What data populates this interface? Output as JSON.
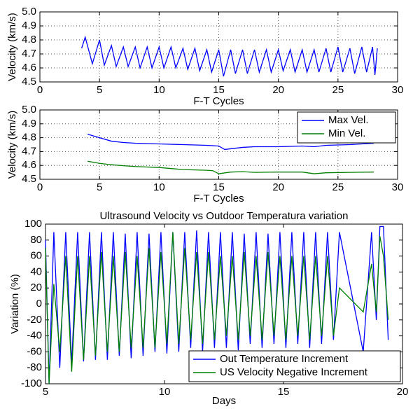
{
  "chart_data": [
    {
      "type": "line",
      "xlabel": "F-T Cycles",
      "ylabel": "Velocity (km/s)",
      "grid": true,
      "xlim": [
        0,
        30
      ],
      "xticks": [
        0,
        5,
        10,
        15,
        20,
        25,
        30
      ],
      "ylim": [
        4.5,
        5
      ],
      "yticks": [
        4.5,
        4.6,
        4.7,
        4.8,
        4.9,
        {
          "value": 5,
          "label": "5.0"
        }
      ],
      "series": [
        {
          "color": "#0000ff",
          "x": [
            3.5,
            3.8,
            4.4,
            5.0,
            5.4,
            6.0,
            6.4,
            7.0,
            7.4,
            8.0,
            8.4,
            9.0,
            9.4,
            10.0,
            10.4,
            11.0,
            11.4,
            12.0,
            12.4,
            13.0,
            13.4,
            14.0,
            14.4,
            15.0,
            15.4,
            16.0,
            16.4,
            17.0,
            17.4,
            18.0,
            18.4,
            19.0,
            19.4,
            20.0,
            20.4,
            21.0,
            21.4,
            22.0,
            22.4,
            23.0,
            23.4,
            24.0,
            24.4,
            25.0,
            25.4,
            26.0,
            26.4,
            27.0,
            27.4,
            27.9,
            28.1,
            28.3
          ],
          "values": [
            4.74,
            4.82,
            4.63,
            4.8,
            4.62,
            4.76,
            4.61,
            4.75,
            4.61,
            4.75,
            4.6,
            4.75,
            4.6,
            4.75,
            4.6,
            4.75,
            4.6,
            4.74,
            4.59,
            4.74,
            4.58,
            4.73,
            4.57,
            4.73,
            4.54,
            4.73,
            4.56,
            4.73,
            4.56,
            4.73,
            4.57,
            4.73,
            4.57,
            4.73,
            4.58,
            4.73,
            4.57,
            4.73,
            4.57,
            4.73,
            4.57,
            4.74,
            4.57,
            4.75,
            4.57,
            4.74,
            4.56,
            4.75,
            4.57,
            4.75,
            4.55,
            4.74
          ]
        }
      ]
    },
    {
      "type": "line",
      "xlabel": "F-T Cycles",
      "ylabel": "Velocity (km/s)",
      "grid": true,
      "legend": "upper right",
      "xlim": [
        0,
        30
      ],
      "xticks": [
        0,
        5,
        10,
        15,
        20,
        25,
        30
      ],
      "ylim": [
        4.5,
        5
      ],
      "yticks": [
        4.5,
        4.6,
        4.7,
        4.8,
        4.9,
        {
          "value": 5,
          "label": "5.0"
        }
      ],
      "series": [
        {
          "name": "Max Vel.",
          "color": "#0000ff",
          "x": [
            4,
            5,
            6,
            7,
            8,
            10,
            12,
            14,
            15,
            15.5,
            16,
            17,
            18,
            20,
            22,
            23,
            24,
            26,
            28
          ],
          "values": [
            4.825,
            4.8,
            4.775,
            4.765,
            4.76,
            4.755,
            4.75,
            4.745,
            4.74,
            4.715,
            4.72,
            4.73,
            4.735,
            4.735,
            4.74,
            4.735,
            4.745,
            4.75,
            4.76
          ]
        },
        {
          "name": "Min Vel.",
          "color": "#008000",
          "x": [
            4,
            5,
            6,
            7,
            8,
            10,
            12,
            14,
            14.5,
            15,
            16,
            17,
            18,
            20,
            22,
            23,
            24,
            26,
            28
          ],
          "values": [
            4.63,
            4.615,
            4.605,
            4.598,
            4.592,
            4.585,
            4.57,
            4.565,
            4.562,
            4.54,
            4.552,
            4.555,
            4.55,
            4.552,
            4.552,
            4.54,
            4.547,
            4.55,
            4.552
          ]
        }
      ]
    },
    {
      "type": "line",
      "title": "Ultrasound Velocity vs Outdoor Temperatura variation",
      "xlabel": "Days",
      "ylabel": "Variation (%)",
      "grid": false,
      "legend": "lower right",
      "xlim": [
        5,
        20
      ],
      "xticks": [
        5,
        10,
        15,
        20
      ],
      "ylim": [
        -100,
        100
      ],
      "yticks": [
        -100,
        -80,
        -60,
        -40,
        -20,
        0,
        20,
        40,
        60,
        80,
        100
      ],
      "series": [
        {
          "name": "Out Temperature Increment",
          "color": "#0000ff",
          "x": [
            5.0,
            5.15,
            5.35,
            5.6,
            5.85,
            6.1,
            6.35,
            6.6,
            6.85,
            7.1,
            7.35,
            7.6,
            7.85,
            8.1,
            8.35,
            8.6,
            8.85,
            9.1,
            9.35,
            9.6,
            9.85,
            10.1,
            10.35,
            10.6,
            10.85,
            11.1,
            11.35,
            11.6,
            11.85,
            12.1,
            12.35,
            12.6,
            12.85,
            13.1,
            13.35,
            13.6,
            13.85,
            14.1,
            14.35,
            14.6,
            14.85,
            15.1,
            15.35,
            15.6,
            15.85,
            16.1,
            16.35,
            16.6,
            16.85,
            17.1,
            17.35,
            18.35,
            18.7,
            18.9,
            19.05,
            19.2,
            19.4
          ],
          "values": [
            80,
            -100,
            90,
            -80,
            90,
            -75,
            90,
            -72,
            90,
            -70,
            90,
            -70,
            90,
            -65,
            88,
            -68,
            90,
            -65,
            88,
            -60,
            90,
            -62,
            90,
            -60,
            90,
            -55,
            92,
            -60,
            90,
            -55,
            90,
            -55,
            90,
            -58,
            88,
            -50,
            90,
            -55,
            88,
            -50,
            90,
            -55,
            90,
            -50,
            90,
            -55,
            90,
            -50,
            90,
            -45,
            90,
            -60,
            90,
            -20,
            97,
            97,
            -45
          ]
        },
        {
          "name": "US Velocity Negative Increment",
          "color": "#008000",
          "x": [
            5.0,
            5.15,
            5.35,
            5.6,
            5.85,
            6.1,
            6.35,
            6.6,
            6.85,
            7.1,
            7.35,
            7.6,
            7.85,
            8.1,
            8.35,
            8.6,
            8.85,
            9.1,
            9.35,
            9.6,
            9.85,
            10.1,
            10.35,
            10.6,
            10.85,
            11.1,
            11.35,
            11.6,
            11.85,
            12.1,
            12.35,
            12.6,
            12.85,
            13.1,
            13.35,
            13.6,
            13.85,
            14.1,
            14.35,
            14.6,
            14.85,
            15.1,
            15.35,
            15.6,
            15.85,
            16.1,
            16.35,
            16.6,
            16.85,
            17.1,
            17.35,
            18.35,
            18.7,
            18.9,
            19.05,
            19.2,
            19.4
          ],
          "values": [
            70,
            -100,
            25,
            -60,
            60,
            -85,
            60,
            -70,
            60,
            -65,
            65,
            -60,
            60,
            -60,
            65,
            -55,
            60,
            -55,
            70,
            -55,
            65,
            -50,
            90,
            -50,
            70,
            -45,
            65,
            -50,
            65,
            -45,
            60,
            -40,
            60,
            -45,
            65,
            -40,
            60,
            -45,
            65,
            -40,
            60,
            -45,
            60,
            -40,
            60,
            -45,
            60,
            -40,
            60,
            -40,
            20,
            -10,
            50,
            -10,
            85,
            60,
            -20
          ]
        }
      ]
    }
  ]
}
